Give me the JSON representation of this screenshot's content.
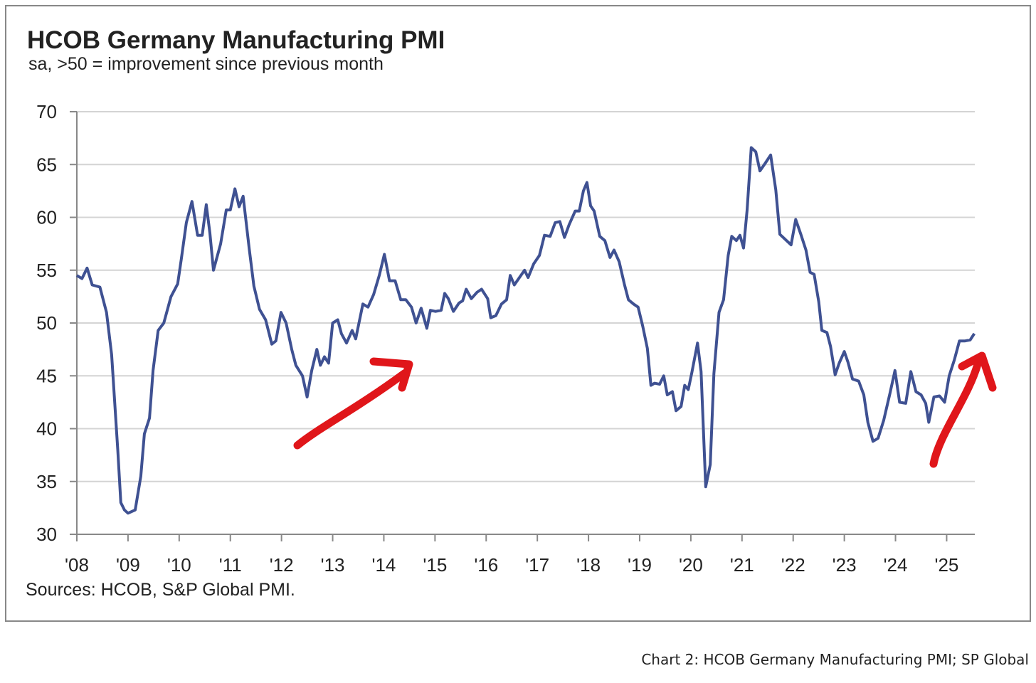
{
  "chart_data": {
    "type": "line",
    "title": "HCOB Germany Manufacturing PMI",
    "subtitle": "sa, >50 = improvement since previous month",
    "source": "Sources: HCOB, S&P Global PMI.",
    "caption": "Chart 2: HCOB Germany Manufacturing PMI; SP Global",
    "grid": true,
    "xlim": [
      2008,
      2025.55
    ],
    "ylim": [
      30,
      70
    ],
    "yticks": [
      30,
      35,
      40,
      45,
      50,
      55,
      60,
      65,
      70
    ],
    "xticks": [
      {
        "value": 2008,
        "label": "'08"
      },
      {
        "value": 2009,
        "label": "'09"
      },
      {
        "value": 2010,
        "label": "'10"
      },
      {
        "value": 2011,
        "label": "'11"
      },
      {
        "value": 2012,
        "label": "'12"
      },
      {
        "value": 2013,
        "label": "'13"
      },
      {
        "value": 2014,
        "label": "'14"
      },
      {
        "value": 2015,
        "label": "'15"
      },
      {
        "value": 2016,
        "label": "'16"
      },
      {
        "value": 2017,
        "label": "'17"
      },
      {
        "value": 2018,
        "label": "'18"
      },
      {
        "value": 2019,
        "label": "'19"
      },
      {
        "value": 2020,
        "label": "'20"
      },
      {
        "value": 2021,
        "label": "'21"
      },
      {
        "value": 2022,
        "label": "'22"
      },
      {
        "value": 2023,
        "label": "'23"
      },
      {
        "value": 2024,
        "label": "'24"
      },
      {
        "value": 2025,
        "label": "'25"
      }
    ],
    "x": [
      2008.0,
      2008.1,
      2008.2,
      2008.3,
      2008.45,
      2008.58,
      2008.68,
      2008.8,
      2008.86,
      2008.93,
      2009.0,
      2009.14,
      2009.25,
      2009.32,
      2009.42,
      2009.49,
      2009.59,
      2009.7,
      2009.84,
      2009.97,
      2010.04,
      2010.14,
      2010.25,
      2010.36,
      2010.45,
      2010.53,
      2010.6,
      2010.67,
      2010.81,
      2010.92,
      2011.0,
      2011.09,
      2011.17,
      2011.25,
      2011.37,
      2011.46,
      2011.57,
      2011.69,
      2011.81,
      2011.89,
      2011.99,
      2012.09,
      2012.2,
      2012.28,
      2012.41,
      2012.5,
      2012.59,
      2012.69,
      2012.76,
      2012.84,
      2012.92,
      2013.0,
      2013.1,
      2013.17,
      2013.27,
      2013.38,
      2013.45,
      2013.59,
      2013.69,
      2013.8,
      2013.91,
      2014.01,
      2014.11,
      2014.22,
      2014.33,
      2014.43,
      2014.54,
      2014.63,
      2014.73,
      2014.84,
      2014.91,
      2015.01,
      2015.12,
      2015.19,
      2015.26,
      2015.36,
      2015.47,
      2015.54,
      2015.61,
      2015.71,
      2015.82,
      2015.91,
      2016.03,
      2016.09,
      2016.19,
      2016.3,
      2016.4,
      2016.47,
      2016.55,
      2016.65,
      2016.75,
      2016.82,
      2016.93,
      2017.04,
      2017.14,
      2017.25,
      2017.35,
      2017.44,
      2017.53,
      2017.62,
      2017.74,
      2017.82,
      2017.9,
      2017.97,
      2018.04,
      2018.11,
      2018.22,
      2018.32,
      2018.42,
      2018.5,
      2018.6,
      2018.7,
      2018.78,
      2018.88,
      2018.97,
      2019.06,
      2019.15,
      2019.22,
      2019.29,
      2019.39,
      2019.47,
      2019.54,
      2019.64,
      2019.71,
      2019.81,
      2019.88,
      2019.95,
      2020.02,
      2020.13,
      2020.2,
      2020.29,
      2020.38,
      2020.45,
      2020.55,
      2020.64,
      2020.73,
      2020.8,
      2020.89,
      2020.96,
      2021.03,
      2021.1,
      2021.18,
      2021.27,
      2021.35,
      2021.45,
      2021.56,
      2021.66,
      2021.74,
      2021.87,
      2021.96,
      2022.05,
      2022.15,
      2022.25,
      2022.33,
      2022.41,
      2022.5,
      2022.56,
      2022.66,
      2022.73,
      2022.82,
      2022.9,
      2023.0,
      2023.07,
      2023.16,
      2023.28,
      2023.38,
      2023.46,
      2023.56,
      2023.66,
      2023.77,
      2023.89,
      2023.99,
      2024.08,
      2024.2,
      2024.3,
      2024.4,
      2024.5,
      2024.59,
      2024.65,
      2024.75,
      2024.86,
      2024.96,
      2025.05,
      2025.15,
      2025.25,
      2025.36,
      2025.46,
      2025.54
    ],
    "series": [
      {
        "name": "PMI",
        "color": "#3f5192",
        "values": [
          54.5,
          54.2,
          55.2,
          53.6,
          53.4,
          51,
          47,
          38,
          33,
          32.3,
          32,
          32.3,
          35.5,
          39.5,
          41,
          45.5,
          49.3,
          50,
          52.5,
          53.7,
          56,
          59.5,
          61.5,
          58.3,
          58.3,
          61.2,
          58.5,
          55,
          57.5,
          60.7,
          60.7,
          62.7,
          61,
          62,
          57,
          53.5,
          51.3,
          50.3,
          48,
          48.3,
          51,
          50,
          47.5,
          46,
          45,
          43,
          45.5,
          47.5,
          46,
          46.8,
          46.2,
          50,
          50.3,
          49,
          48.1,
          49.3,
          48.5,
          51.8,
          51.5,
          52.7,
          54.5,
          56.5,
          54,
          54,
          52.2,
          52.2,
          51.5,
          50,
          51.4,
          49.5,
          51.2,
          51.1,
          51.2,
          52.8,
          52.3,
          51.1,
          51.9,
          52.1,
          53.2,
          52.3,
          52.9,
          53.2,
          52.3,
          50.5,
          50.7,
          51.8,
          52.2,
          54.5,
          53.6,
          54.3,
          55,
          54.3,
          55.6,
          56.4,
          58.3,
          58.2,
          59.5,
          59.6,
          58.1,
          59.3,
          60.6,
          60.6,
          62.5,
          63.3,
          61.1,
          60.6,
          58.2,
          57.8,
          56.2,
          56.9,
          55.8,
          53.7,
          52.2,
          51.8,
          51.5,
          49.7,
          47.6,
          44.1,
          44.3,
          44.2,
          45,
          43.2,
          43.5,
          41.7,
          42.1,
          44.1,
          43.7,
          45.3,
          48.1,
          45.4,
          34.5,
          36.6,
          45.2,
          51,
          52.2,
          56.4,
          58.2,
          57.8,
          58.3,
          57.1,
          60.7,
          66.6,
          66.2,
          64.4,
          65.1,
          65.9,
          62.6,
          58.4,
          57.8,
          57.4,
          59.8,
          58.4,
          56.9,
          54.8,
          54.6,
          52,
          49.3,
          49.1,
          47.8,
          45.1,
          46.2,
          47.3,
          46.3,
          44.7,
          44.5,
          43.2,
          40.6,
          38.8,
          39.1,
          40.8,
          43.3,
          45.5,
          42.5,
          42.4,
          45.4,
          43.5,
          43.2,
          42.4,
          40.6,
          43,
          43.1,
          42.5,
          45,
          46.5,
          48.3,
          48.3,
          48.4,
          49
        ]
      }
    ]
  }
}
